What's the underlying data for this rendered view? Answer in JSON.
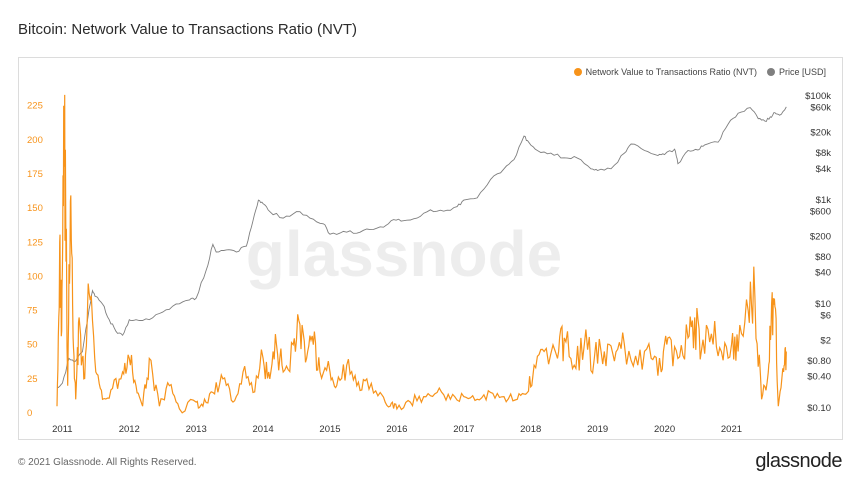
{
  "title": "Bitcoin: Network Value to Transactions Ratio (NVT)",
  "footer": "© 2021 Glassnode. All Rights Reserved.",
  "brand": "glassnode",
  "watermark": "glassnode",
  "legend": [
    {
      "label": "Network Value to Transactions Ratio (NVT)",
      "color": "#f7931a"
    },
    {
      "label": "Price [USD]",
      "color": "#7f7f7f"
    }
  ],
  "chart_data": {
    "type": "line",
    "x_ticks": [
      "2011",
      "2012",
      "2013",
      "2014",
      "2015",
      "2016",
      "2017",
      "2018",
      "2019",
      "2020",
      "2021"
    ],
    "y_left": {
      "ticks": [
        0,
        25,
        50,
        75,
        100,
        125,
        150,
        175,
        200,
        225
      ],
      "range": [
        0,
        235
      ],
      "color": "#f7931a"
    },
    "y_right": {
      "scale": "log",
      "ticks": [
        "$0.10",
        "$0.40",
        "$0.80",
        "$2",
        "$6",
        "$10",
        "$40",
        "$80",
        "$200",
        "$600",
        "$1k",
        "$4k",
        "$8k",
        "$20k",
        "$60k",
        "$100k"
      ],
      "tick_values": [
        0.1,
        0.4,
        0.8,
        2,
        6,
        10,
        40,
        80,
        200,
        600,
        1000,
        4000,
        8000,
        20000,
        60000,
        100000
      ]
    },
    "series": [
      {
        "name": "Network Value to Transactions Ratio (NVT)",
        "axis": "left",
        "color": "#f7931a",
        "points": [
          [
            2010.92,
            5
          ],
          [
            2010.96,
            125
          ],
          [
            2010.99,
            60
          ],
          [
            2011.02,
            225
          ],
          [
            2011.05,
            150
          ],
          [
            2011.08,
            20
          ],
          [
            2011.12,
            155
          ],
          [
            2011.16,
            55
          ],
          [
            2011.2,
            10
          ],
          [
            2011.25,
            70
          ],
          [
            2011.32,
            25
          ],
          [
            2011.4,
            88
          ],
          [
            2011.5,
            30
          ],
          [
            2011.6,
            10
          ],
          [
            2011.75,
            18
          ],
          [
            2011.9,
            30
          ],
          [
            2012.0,
            40
          ],
          [
            2012.1,
            20
          ],
          [
            2012.2,
            5
          ],
          [
            2012.3,
            40
          ],
          [
            2012.45,
            5
          ],
          [
            2012.6,
            20
          ],
          [
            2012.75,
            3
          ],
          [
            2013.0,
            8
          ],
          [
            2013.1,
            5
          ],
          [
            2013.25,
            15
          ],
          [
            2013.4,
            25
          ],
          [
            2013.55,
            8
          ],
          [
            2013.7,
            30
          ],
          [
            2013.85,
            15
          ],
          [
            2014.0,
            40
          ],
          [
            2014.1,
            25
          ],
          [
            2014.2,
            50
          ],
          [
            2014.3,
            30
          ],
          [
            2014.45,
            50
          ],
          [
            2014.55,
            65
          ],
          [
            2014.65,
            40
          ],
          [
            2014.75,
            50
          ],
          [
            2014.85,
            30
          ],
          [
            2015.0,
            30
          ],
          [
            2015.1,
            20
          ],
          [
            2015.25,
            35
          ],
          [
            2015.4,
            20
          ],
          [
            2015.55,
            25
          ],
          [
            2015.75,
            15
          ],
          [
            2015.9,
            5
          ],
          [
            2016.0,
            3
          ],
          [
            2016.2,
            8
          ],
          [
            2016.4,
            12
          ],
          [
            2016.6,
            15
          ],
          [
            2016.8,
            10
          ],
          [
            2017.0,
            12
          ],
          [
            2017.2,
            10
          ],
          [
            2017.4,
            15
          ],
          [
            2017.6,
            12
          ],
          [
            2017.8,
            10
          ],
          [
            2017.95,
            15
          ],
          [
            2018.05,
            35
          ],
          [
            2018.2,
            45
          ],
          [
            2018.4,
            40
          ],
          [
            2018.5,
            55
          ],
          [
            2018.65,
            35
          ],
          [
            2018.8,
            50
          ],
          [
            2018.95,
            40
          ],
          [
            2019.1,
            45
          ],
          [
            2019.25,
            38
          ],
          [
            2019.4,
            50
          ],
          [
            2019.6,
            35
          ],
          [
            2019.8,
            40
          ],
          [
            2019.95,
            30
          ],
          [
            2020.05,
            55
          ],
          [
            2020.2,
            40
          ],
          [
            2020.35,
            55
          ],
          [
            2020.45,
            70
          ],
          [
            2020.55,
            45
          ],
          [
            2020.7,
            58
          ],
          [
            2020.85,
            45
          ],
          [
            2021.0,
            50
          ],
          [
            2021.1,
            45
          ],
          [
            2021.25,
            75
          ],
          [
            2021.35,
            85
          ],
          [
            2021.45,
            10
          ],
          [
            2021.55,
            30
          ],
          [
            2021.6,
            80
          ],
          [
            2021.65,
            78
          ],
          [
            2021.7,
            5
          ],
          [
            2021.78,
            30
          ],
          [
            2021.82,
            45
          ]
        ]
      },
      {
        "name": "Price [USD]",
        "axis": "right",
        "color": "#7f7f7f",
        "points": [
          [
            2010.92,
            0.25
          ],
          [
            2011.0,
            0.3
          ],
          [
            2011.1,
            0.9
          ],
          [
            2011.2,
            0.8
          ],
          [
            2011.3,
            1.2
          ],
          [
            2011.4,
            8
          ],
          [
            2011.45,
            18
          ],
          [
            2011.5,
            14
          ],
          [
            2011.6,
            10
          ],
          [
            2011.7,
            5
          ],
          [
            2011.8,
            3
          ],
          [
            2011.9,
            2.5
          ],
          [
            2012.0,
            5
          ],
          [
            2012.1,
            5
          ],
          [
            2012.3,
            5
          ],
          [
            2012.5,
            7
          ],
          [
            2012.7,
            10
          ],
          [
            2012.9,
            12
          ],
          [
            2013.0,
            13
          ],
          [
            2013.15,
            45
          ],
          [
            2013.25,
            140
          ],
          [
            2013.3,
            100
          ],
          [
            2013.45,
            110
          ],
          [
            2013.6,
            100
          ],
          [
            2013.75,
            130
          ],
          [
            2013.85,
            400
          ],
          [
            2013.93,
            1000
          ],
          [
            2014.0,
            850
          ],
          [
            2014.1,
            600
          ],
          [
            2014.3,
            450
          ],
          [
            2014.5,
            600
          ],
          [
            2014.7,
            450
          ],
          [
            2014.9,
            350
          ],
          [
            2015.0,
            220
          ],
          [
            2015.2,
            250
          ],
          [
            2015.4,
            230
          ],
          [
            2015.6,
            270
          ],
          [
            2015.8,
            300
          ],
          [
            2015.95,
            420
          ],
          [
            2016.1,
            400
          ],
          [
            2016.3,
            450
          ],
          [
            2016.5,
            650
          ],
          [
            2016.7,
            610
          ],
          [
            2016.9,
            750
          ],
          [
            2017.0,
            1000
          ],
          [
            2017.2,
            1100
          ],
          [
            2017.4,
            2500
          ],
          [
            2017.6,
            4000
          ],
          [
            2017.75,
            6000
          ],
          [
            2017.9,
            17000
          ],
          [
            2017.97,
            13000
          ],
          [
            2018.1,
            9000
          ],
          [
            2018.3,
            8000
          ],
          [
            2018.5,
            6500
          ],
          [
            2018.7,
            6400
          ],
          [
            2018.9,
            4000
          ],
          [
            2019.0,
            3700
          ],
          [
            2019.2,
            4000
          ],
          [
            2019.4,
            8000
          ],
          [
            2019.5,
            12000
          ],
          [
            2019.7,
            9000
          ],
          [
            2019.9,
            7200
          ],
          [
            2020.0,
            7500
          ],
          [
            2020.15,
            9500
          ],
          [
            2020.2,
            5000
          ],
          [
            2020.35,
            9000
          ],
          [
            2020.5,
            9200
          ],
          [
            2020.6,
            11500
          ],
          [
            2020.8,
            13000
          ],
          [
            2020.95,
            29000
          ],
          [
            2021.1,
            47000
          ],
          [
            2021.28,
            60000
          ],
          [
            2021.4,
            37000
          ],
          [
            2021.5,
            33000
          ],
          [
            2021.58,
            40000
          ],
          [
            2021.65,
            48000
          ],
          [
            2021.72,
            43000
          ],
          [
            2021.82,
            62000
          ]
        ]
      }
    ]
  }
}
